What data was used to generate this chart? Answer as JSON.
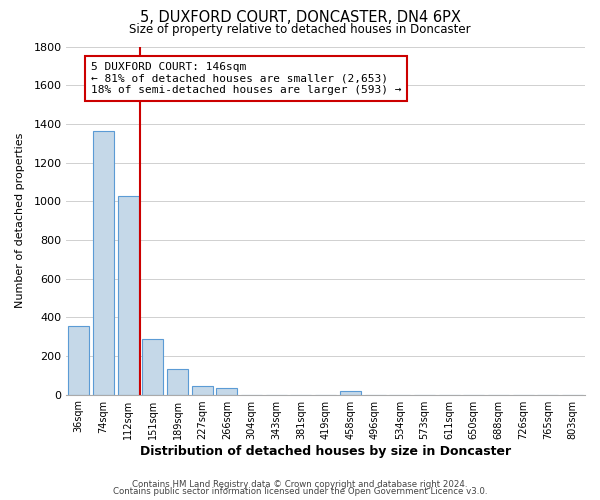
{
  "title": "5, DUXFORD COURT, DONCASTER, DN4 6PX",
  "subtitle": "Size of property relative to detached houses in Doncaster",
  "xlabel": "Distribution of detached houses by size in Doncaster",
  "ylabel": "Number of detached properties",
  "bar_labels": [
    "36sqm",
    "74sqm",
    "112sqm",
    "151sqm",
    "189sqm",
    "227sqm",
    "266sqm",
    "304sqm",
    "343sqm",
    "381sqm",
    "419sqm",
    "458sqm",
    "496sqm",
    "534sqm",
    "573sqm",
    "611sqm",
    "650sqm",
    "688sqm",
    "726sqm",
    "765sqm",
    "803sqm"
  ],
  "bar_values": [
    355,
    1365,
    1025,
    290,
    130,
    45,
    35,
    0,
    0,
    0,
    0,
    20,
    0,
    0,
    0,
    0,
    0,
    0,
    0,
    0,
    0
  ],
  "bar_color": "#c5d8e8",
  "bar_edge_color": "#5b9bd5",
  "property_line_color": "#cc0000",
  "property_line_x": 2.5,
  "ylim": [
    0,
    1800
  ],
  "yticks": [
    0,
    200,
    400,
    600,
    800,
    1000,
    1200,
    1400,
    1600,
    1800
  ],
  "annotation_line1": "5 DUXFORD COURT: 146sqm",
  "annotation_line2": "← 81% of detached houses are smaller (2,653)",
  "annotation_line3": "18% of semi-detached houses are larger (593) →",
  "annotation_box_color": "#ffffff",
  "annotation_box_edge": "#cc0000",
  "footer1": "Contains HM Land Registry data © Crown copyright and database right 2024.",
  "footer2": "Contains public sector information licensed under the Open Government Licence v3.0.",
  "background_color": "#ffffff",
  "grid_color": "#d0d0d0"
}
